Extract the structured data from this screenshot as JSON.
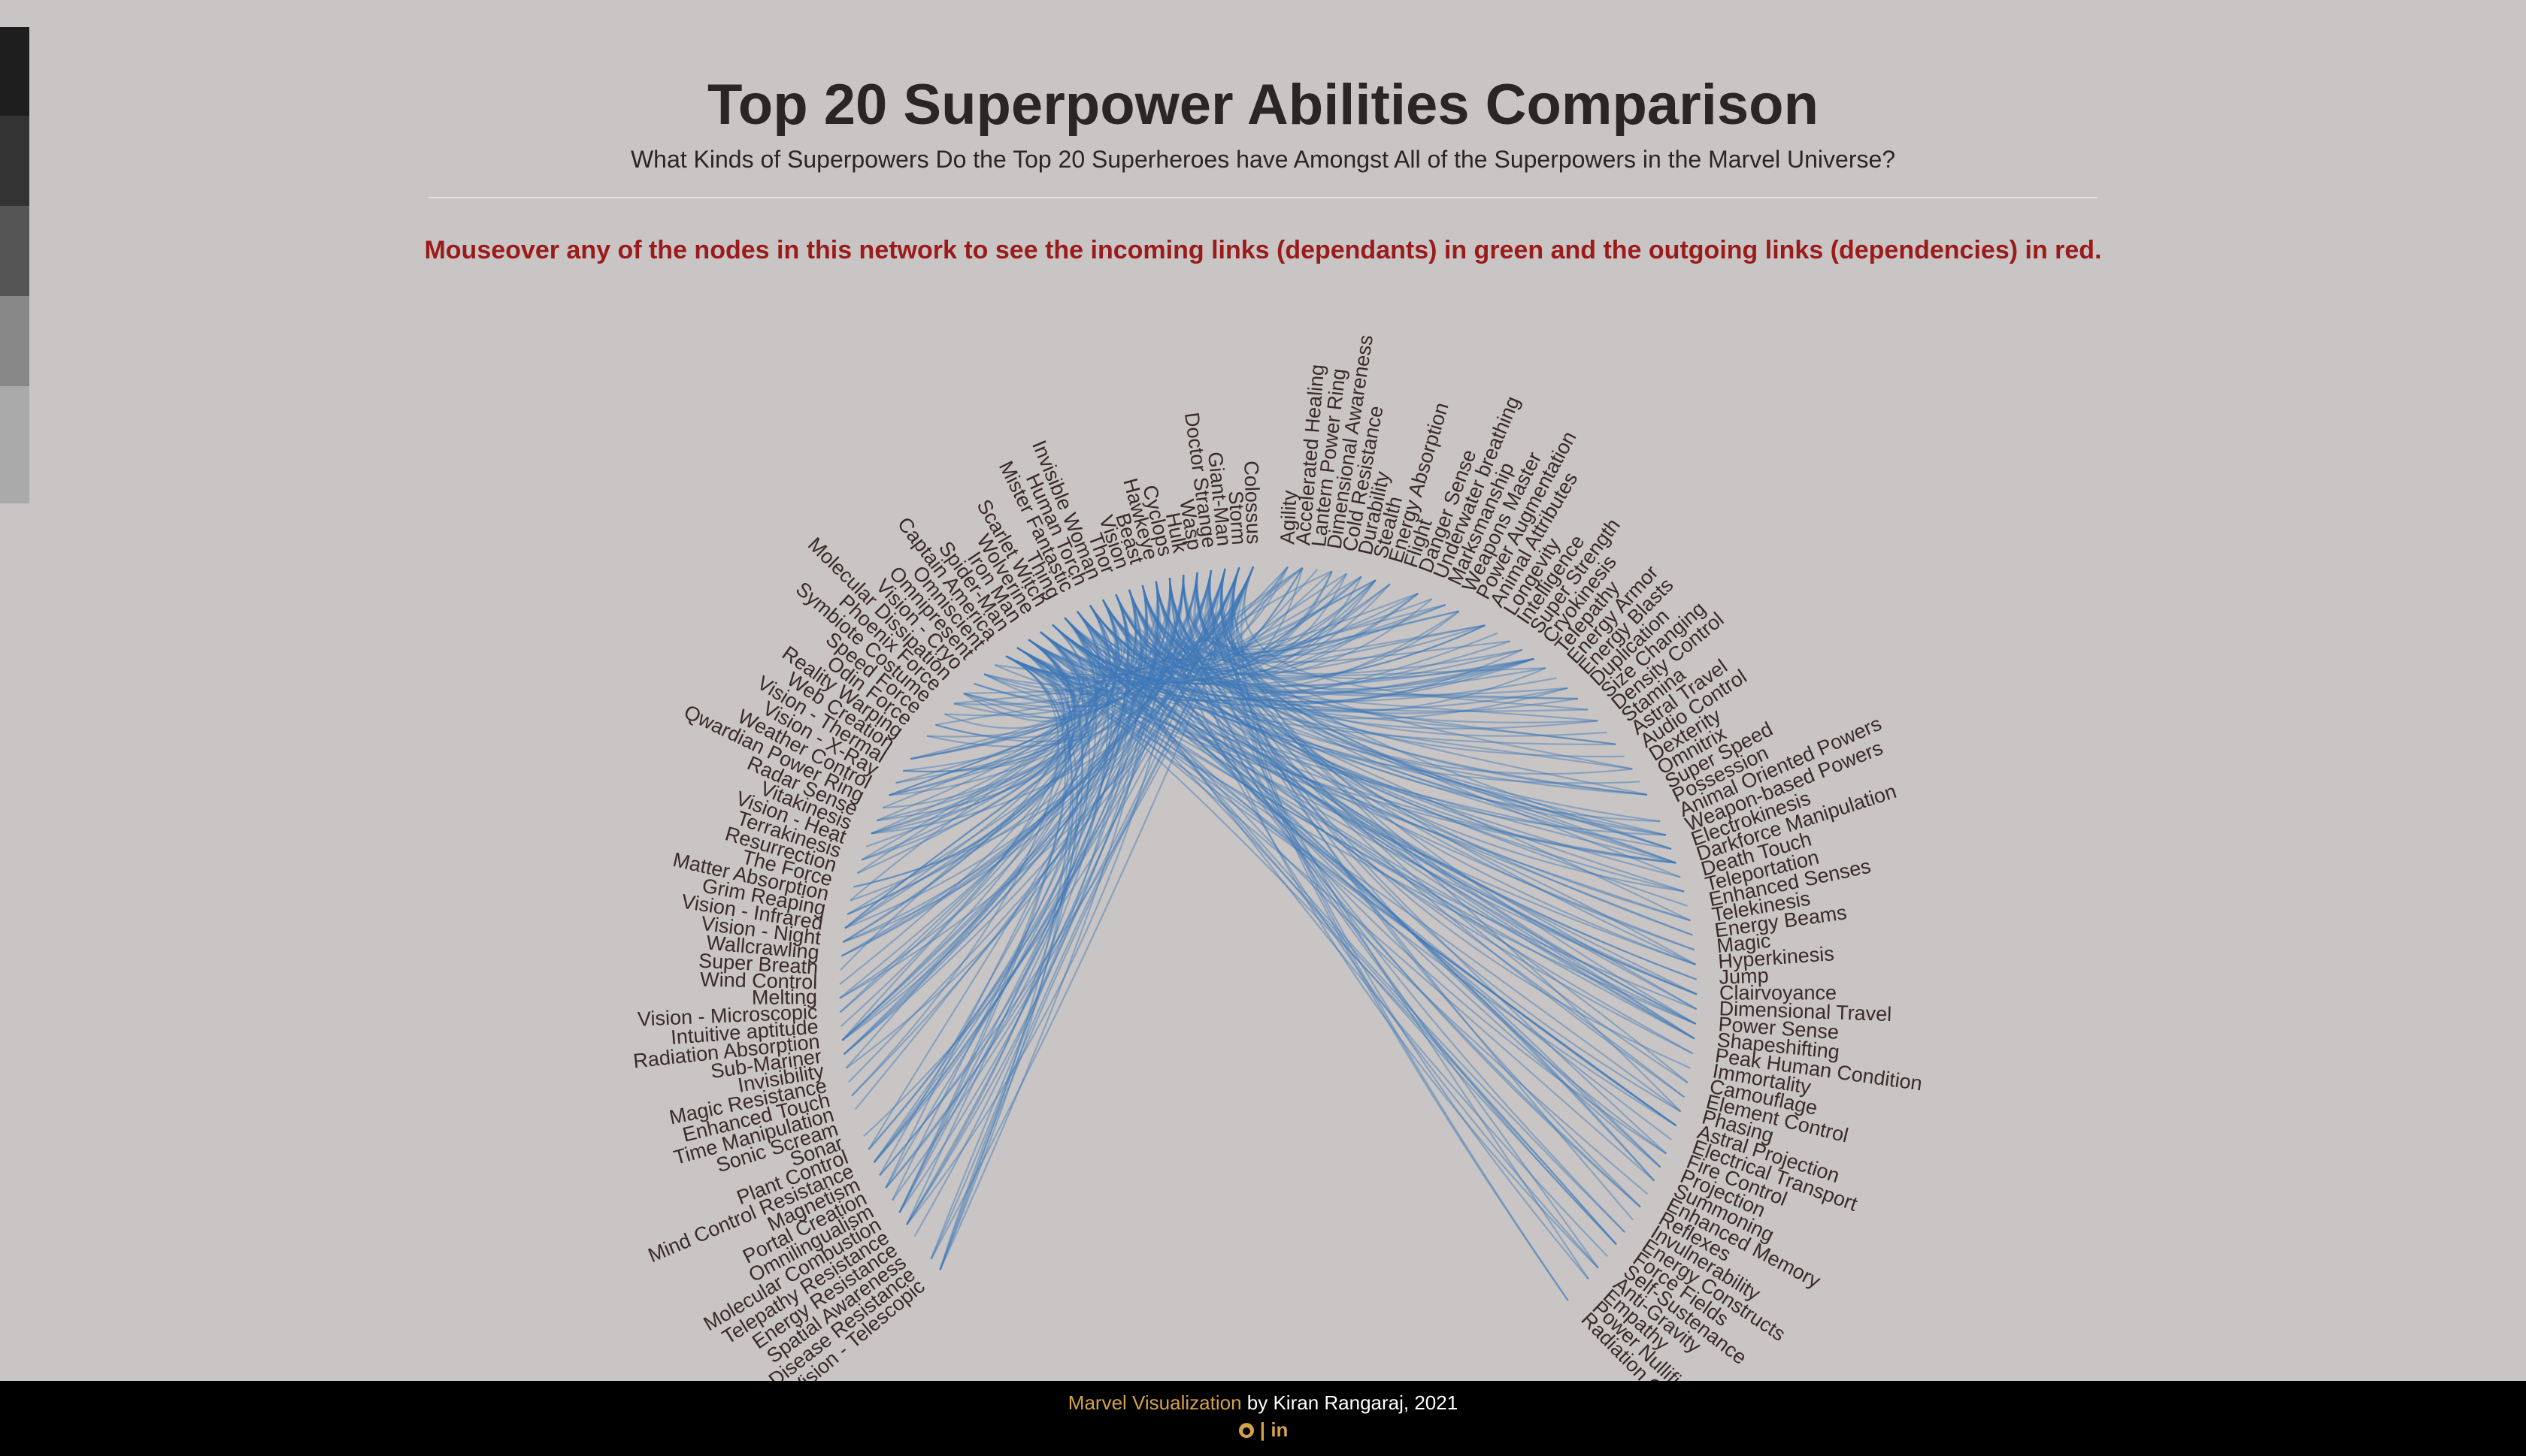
{
  "header": {
    "title": "Top 20 Superpower Abilities Comparison",
    "subtitle": "What Kinds of Superpowers Do the Top 20 Superheroes have Amongst All of the Superpowers in the Marvel Universe?"
  },
  "instruction": "Mouseover any of the nodes in this network to see the incoming links (dependants) in green and the outgoing links (dependencies) in red.",
  "diagram": {
    "nodes_right": [
      "Agility",
      "Accelerated Healing",
      "Lantern Power Ring",
      "Dimensional Awareness",
      "Cold Resistance",
      "Durability",
      "Stealth",
      "Energy Absorption",
      "Flight",
      "Danger Sense",
      "Underwater breathing",
      "Marksmanship",
      "Weapons Master",
      "Power Augmentation",
      "Animal Attributes",
      "Longevity",
      "Intelligence",
      "Super Strength",
      "Cryokinesis",
      "Telepathy",
      "Energy Armor",
      "Energy Blasts",
      "Duplication",
      "Size Changing",
      "Density Control",
      "Stamina",
      "Astral Travel",
      "Audio Control",
      "Dexterity",
      "Omnitrix",
      "Super Speed",
      "Possession",
      "Animal Oriented Powers",
      "Weapon-based Powers",
      "Electrokinesis",
      "Darkforce Manipulation",
      "Death Touch",
      "Teleportation",
      "Enhanced Senses",
      "Telekinesis",
      "Energy Beams",
      "Magic",
      "Hyperkinesis",
      "Jump",
      "Clairvoyance",
      "Dimensional Travel",
      "Power Sense",
      "Shapeshifting",
      "Peak Human Condition",
      "Immortality",
      "Camouflage",
      "Element Control",
      "Phasing",
      "Astral Projection",
      "Electrical Transport",
      "Fire Control",
      "Projection",
      "Summoning",
      "Enhanced Memory",
      "Reflexes",
      "Invulnerability",
      "Energy Constructs",
      "Force Fields",
      "Self-Sustenance",
      "Anti-Gravity",
      "Empathy",
      "Power Nullifier",
      "Radiation Control"
    ],
    "nodes_left": [
      "Colossus",
      "Storm",
      "Giant-Man",
      "Doctor Strange",
      "Wasp",
      "Hulk",
      "Cyclops",
      "Hawkeye",
      "Beast",
      "Vision",
      "Thor",
      "Invisible Woman",
      "Human Torch",
      "Mister Fantastic",
      "Thing",
      "Scarlet Witch",
      "Wolverine",
      "Iron Man",
      "Spider-Man",
      "Captain America",
      "Omniscient",
      "Omnipresent",
      "Vision - Cryo",
      "Molecular Dissipation",
      "Phoenix Force",
      "Symbiote Costume",
      "Speed Force",
      "Odin Force",
      "Reality Warping",
      "Web Creation",
      "Vision - Thermal",
      "Vision - X-Ray",
      "Weather Control",
      "Qwardian Power Ring",
      "Radar Sense",
      "Vitakinesis",
      "Vision - Heat",
      "Terrakinesis",
      "Resurrection",
      "The Force",
      "Matter Absorption",
      "Grim Reaping",
      "Vision - Infrared",
      "Vision - Night",
      "Wallcrawling",
      "Super Breath",
      "Wind Control",
      "Melting",
      "Vision - Microscopic",
      "Intuitive aptitude",
      "Radiation Absorption",
      "Sub-Mariner",
      "Invisibility",
      "Magic Resistance",
      "Enhanced Touch",
      "Time Manipulation",
      "Sonic Scream",
      "Sonar",
      "Plant Control",
      "Mind Control Resistance",
      "Magnetism",
      "Portal Creation",
      "Omnilingualism",
      "Molecular Combustion",
      "Telepathy Resistance",
      "Energy Resistance",
      "Spatial Awareness",
      "Disease Resistance",
      "Vision - Telescopic"
    ]
  },
  "footer": {
    "link": "Marvel Visualization",
    "credit": "by Kiran Rangaraj, 2021",
    "separator": "|",
    "linkedin": "in"
  }
}
